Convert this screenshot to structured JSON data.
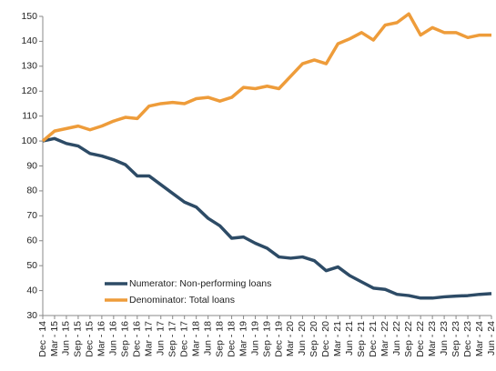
{
  "chart_data": {
    "type": "line",
    "categories": [
      "Dec - 14",
      "Mar - 15",
      "Jun - 15",
      "Sep - 15",
      "Dec - 15",
      "Mar - 16",
      "Jun - 16",
      "Sep - 16",
      "Dec - 16",
      "Mar - 17",
      "Jun - 17",
      "Sep - 17",
      "Dec - 17",
      "Mar - 18",
      "Jun - 18",
      "Sep - 18",
      "Dec - 18",
      "Mar - 19",
      "Jun - 19",
      "Sep - 19",
      "Dec - 19",
      "Mar - 20",
      "Jun - 20",
      "Sep - 20",
      "Dec - 20",
      "Mar - 21",
      "Jun - 21",
      "Sep - 21",
      "Dec - 21",
      "Mar - 22",
      "Jun - 22",
      "Sep - 22",
      "Dec - 22",
      "Mar - 23",
      "Jun - 23",
      "Sep - 23",
      "Dec - 23",
      "Mar - 24",
      "Jun - 24"
    ],
    "series": [
      {
        "name": "Numerator: Non-performing loans",
        "color": "#2d4b66",
        "values": [
          100,
          101,
          99,
          98,
          95,
          94,
          92.5,
          90.5,
          86,
          86,
          82.5,
          79,
          75.5,
          73.5,
          69,
          66,
          61,
          61.5,
          59,
          57,
          53.5,
          53,
          53.5,
          52,
          48,
          49.5,
          46,
          43.5,
          41,
          40.5,
          38.5,
          38,
          37,
          37,
          37.5,
          37.8,
          38,
          38.5,
          38.8
        ]
      },
      {
        "name": "Denominator: Total loans",
        "color": "#ee9c3a",
        "values": [
          100,
          104,
          105,
          106,
          104.5,
          106,
          108,
          109.5,
          109,
          114,
          115,
          115.5,
          115,
          117,
          117.5,
          116,
          117.5,
          121.5,
          121,
          122,
          121,
          126,
          131,
          132.5,
          131,
          139,
          141,
          143.5,
          140.5,
          146.5,
          147.5,
          151,
          142.5,
          145.5,
          143.5,
          143.5,
          141.5,
          142.5,
          142.5
        ]
      }
    ],
    "ylim": [
      30,
      150
    ],
    "yticks": [
      30,
      40,
      50,
      60,
      70,
      80,
      90,
      100,
      110,
      120,
      130,
      140,
      150
    ],
    "grid": false
  }
}
